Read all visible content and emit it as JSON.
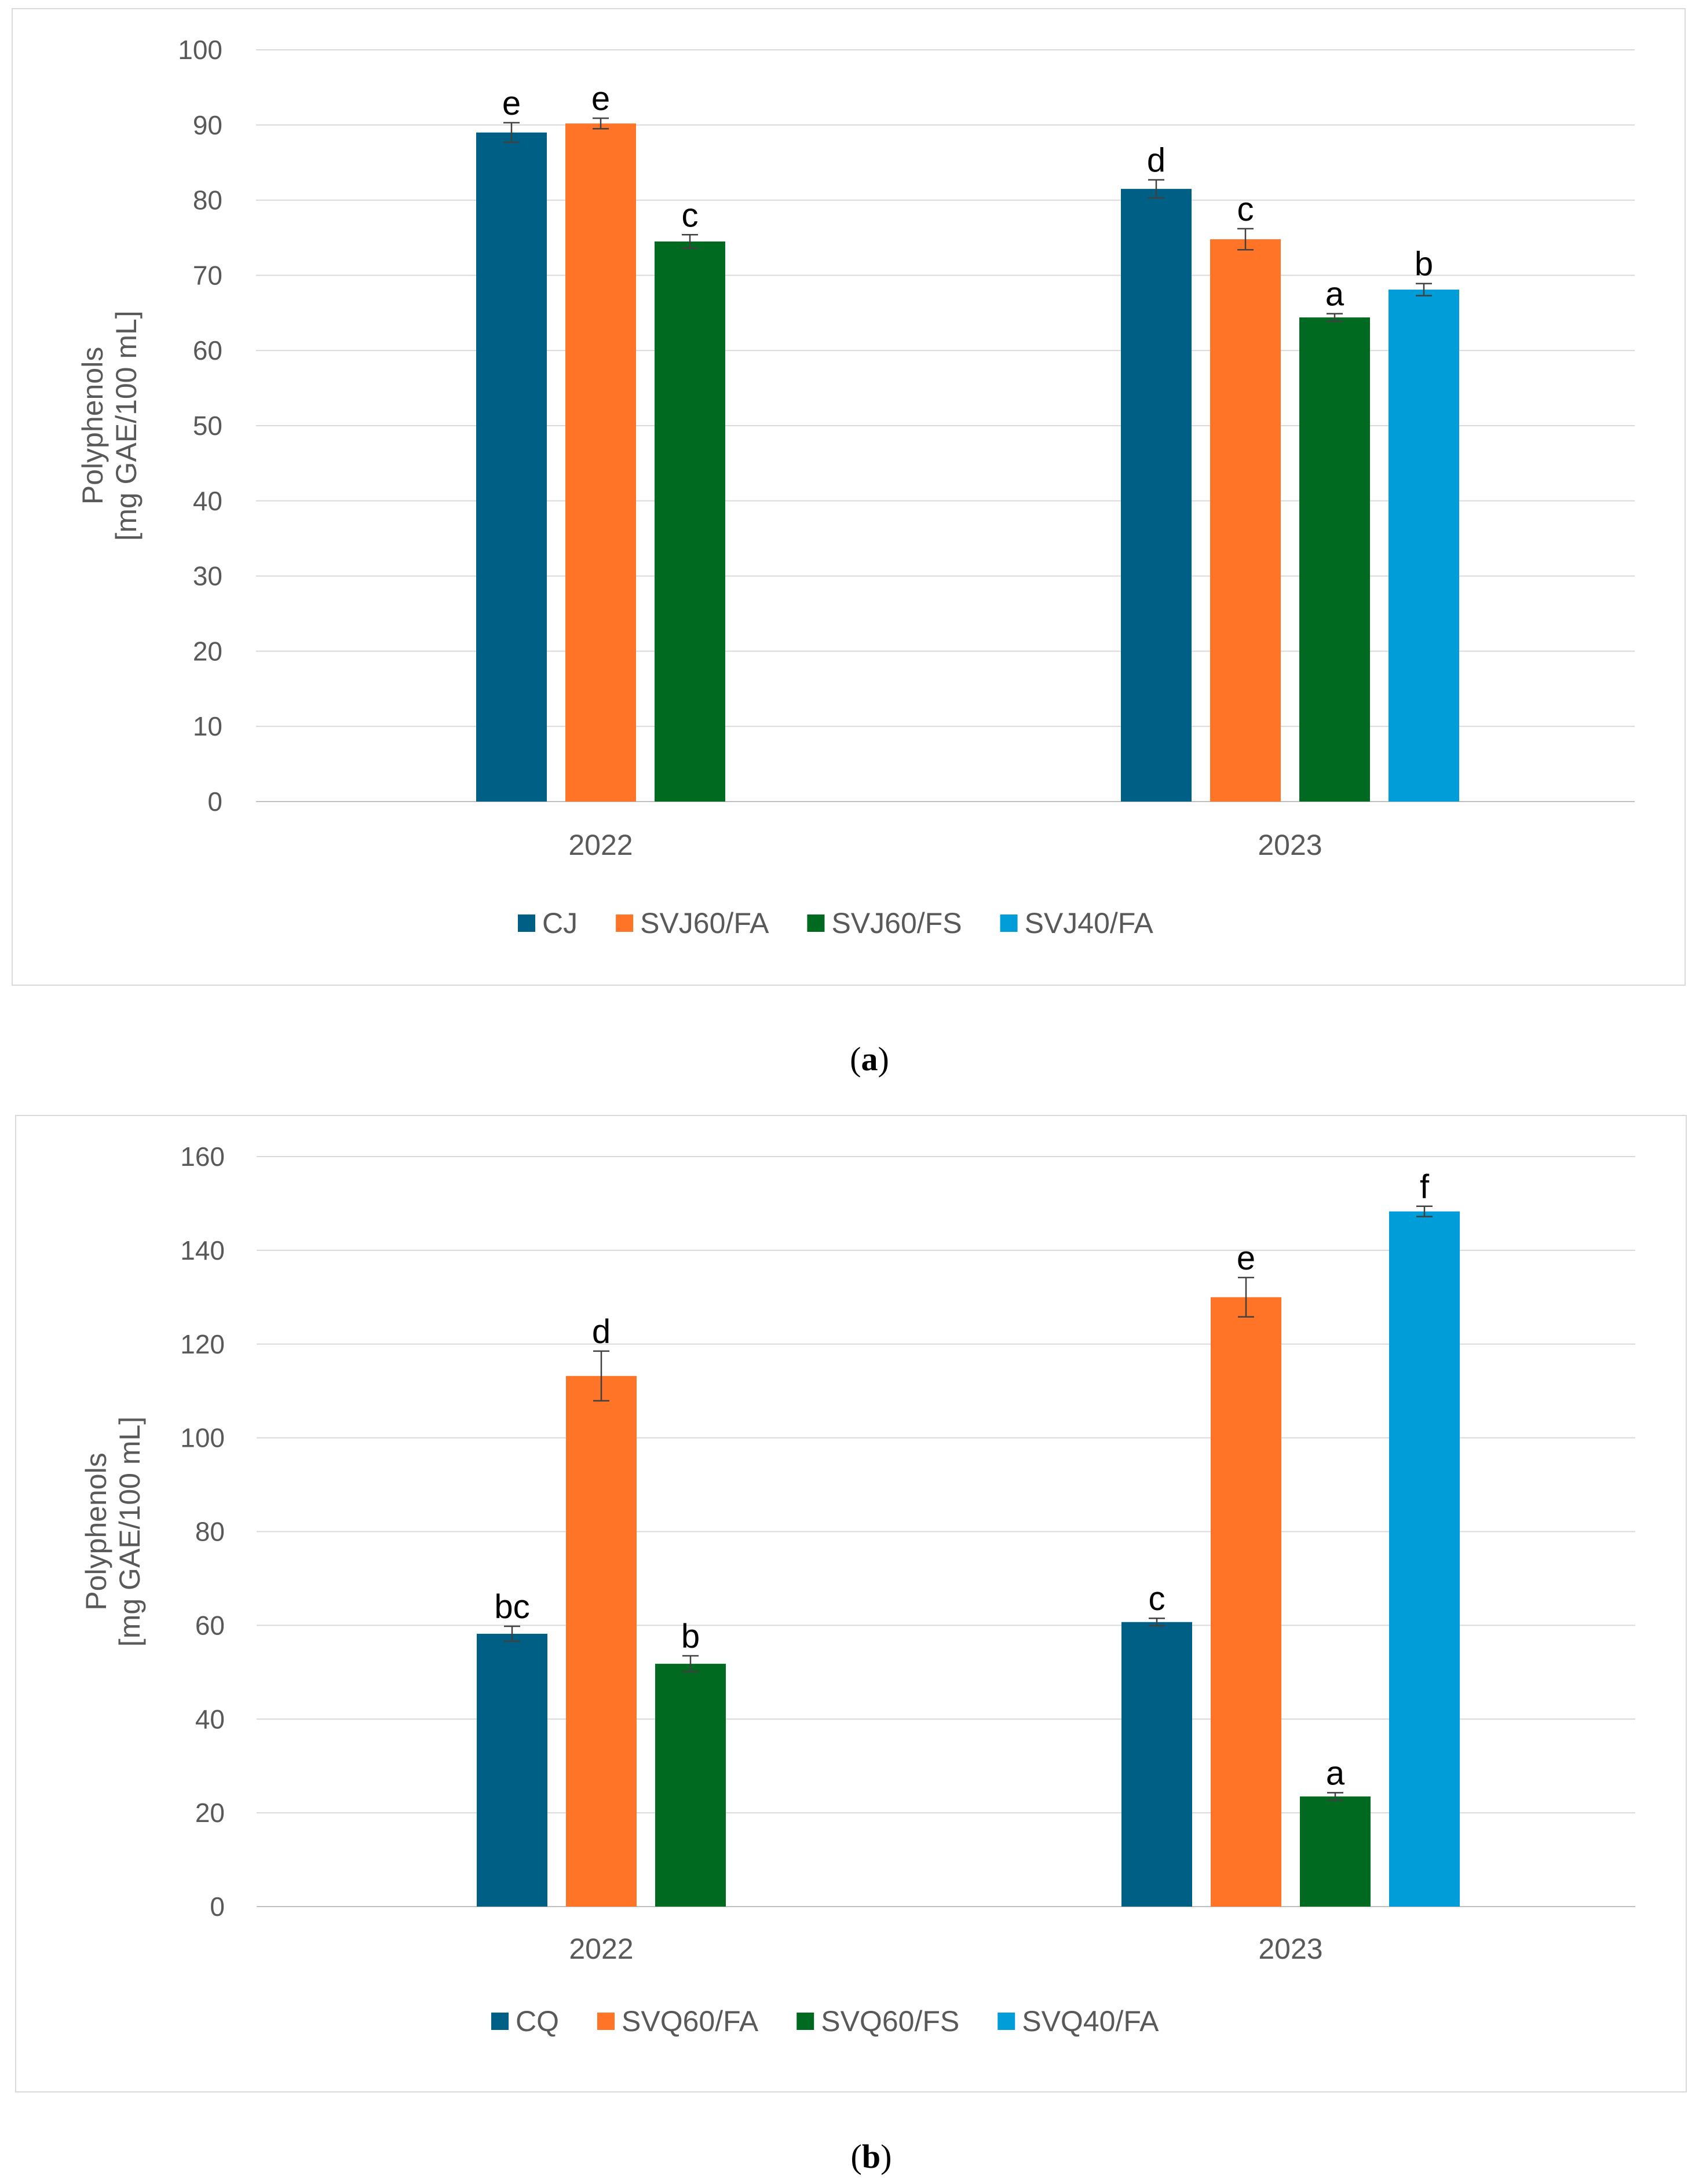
{
  "chart_data": [
    {
      "type": "bar",
      "panel": "a",
      "caption_label": "a",
      "categories": [
        "2022",
        "2023"
      ],
      "ylabel_line1": "Polyphenols",
      "ylabel_line2": "[mg GAE/100 mL]",
      "ylim": [
        0,
        100
      ],
      "yticks": [
        0,
        10,
        20,
        30,
        40,
        50,
        60,
        70,
        80,
        90,
        100
      ],
      "grid": true,
      "legend_position": "bottom",
      "series": [
        {
          "name": "CJ",
          "color": "#005f84",
          "values": [
            89,
            81.5
          ],
          "errors": [
            1.3,
            1.2
          ],
          "letters": [
            "e",
            "d"
          ]
        },
        {
          "name": "SVJ60/FA",
          "color": "#ff7427",
          "values": [
            90.2,
            74.8
          ],
          "errors": [
            0.7,
            1.4
          ],
          "letters": [
            "e",
            "c"
          ]
        },
        {
          "name": "SVJ60/FS",
          "color": "#006a21",
          "values": [
            74.5,
            64.4
          ],
          "errors": [
            0.9,
            0.5
          ],
          "letters": [
            "c",
            "a"
          ]
        },
        {
          "name": "SVJ40/FA",
          "color": "#009dd8",
          "values": [
            null,
            68.1
          ],
          "errors": [
            null,
            0.8
          ],
          "letters": [
            "",
            "b"
          ]
        }
      ]
    },
    {
      "type": "bar",
      "panel": "b",
      "caption_label": "b",
      "categories": [
        "2022",
        "2023"
      ],
      "ylabel_line1": "Polyphenols",
      "ylabel_line2": "[mg GAE/100 mL]",
      "ylim": [
        0,
        160
      ],
      "yticks": [
        0,
        20,
        40,
        60,
        80,
        100,
        120,
        140,
        160
      ],
      "grid": true,
      "legend_position": "bottom",
      "series": [
        {
          "name": "CQ",
          "color": "#005f84",
          "values": [
            58.2,
            60.7
          ],
          "errors": [
            1.6,
            0.8
          ],
          "letters": [
            "bc",
            "c"
          ]
        },
        {
          "name": "SVQ60/FA",
          "color": "#ff7427",
          "values": [
            113.2,
            130
          ],
          "errors": [
            5.3,
            4.2
          ],
          "letters": [
            "d",
            "e"
          ]
        },
        {
          "name": "SVQ60/FS",
          "color": "#006a21",
          "values": [
            51.8,
            23.5
          ],
          "errors": [
            1.7,
            0.8
          ],
          "letters": [
            "b",
            "a"
          ]
        },
        {
          "name": "SVQ40/FA",
          "color": "#009dd8",
          "values": [
            null,
            148.3
          ],
          "errors": [
            null,
            1.1
          ],
          "letters": [
            "",
            "f"
          ]
        }
      ]
    }
  ]
}
